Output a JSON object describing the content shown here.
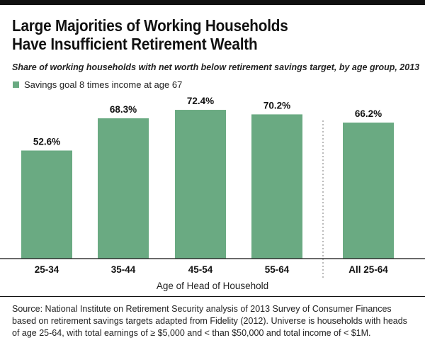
{
  "chart_data": {
    "type": "bar",
    "title": [
      "Large Majorities of Working Households",
      "Have Insufficient Retirement Wealth"
    ],
    "subtitle": "Share of working households with net worth below retirement savings target, by age group, 2013",
    "categories": [
      "25-34",
      "35-44",
      "45-54",
      "55-64",
      "All 25-64"
    ],
    "series": [
      {
        "name": "Savings goal 8 times income at age 67",
        "values": [
          52.6,
          68.3,
          72.4,
          70.2,
          66.2
        ],
        "labels": [
          "52.6%",
          "68.3%",
          "72.4%",
          "70.2%",
          "66.2%"
        ]
      }
    ],
    "xlabel": "Age of Head of Household",
    "ylabel": "",
    "ylim": [
      0,
      100
    ],
    "grid": false,
    "legend": "top-left",
    "separator_before_category": "All 25-64",
    "colors": {
      "bar": "#6aaa82",
      "text": "#111111",
      "separator": "#777777"
    }
  },
  "source": "Source: National Institute on Retirement Security analysis of 2013 Survey of Consumer Finances based on retirement savings targets adapted from Fidelity (2012). Universe is households with heads of age 25-64, with total earnings of ≥ $5,000 and < than $50,000 and total income of < $1M."
}
